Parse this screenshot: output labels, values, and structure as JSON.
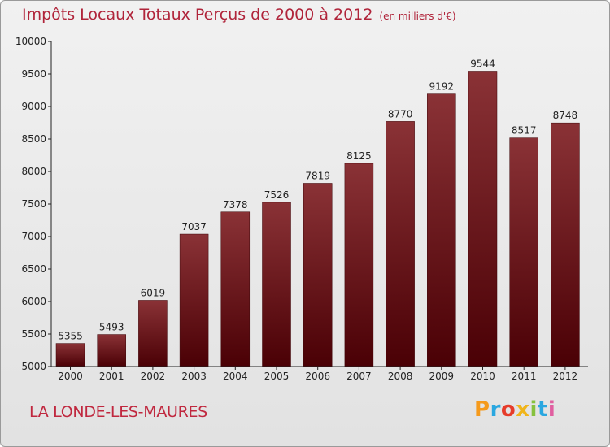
{
  "chart_data": {
    "type": "bar",
    "title": "Impôts Locaux Totaux Perçus de 2000 à 2012",
    "subtitle": "(en milliers d'€)",
    "categories": [
      "2000",
      "2001",
      "2002",
      "2003",
      "2004",
      "2005",
      "2006",
      "2007",
      "2008",
      "2009",
      "2010",
      "2011",
      "2012"
    ],
    "values": [
      5355,
      5493,
      6019,
      7037,
      7378,
      7526,
      7819,
      8125,
      8770,
      9192,
      9544,
      8517,
      8748
    ],
    "ylim": [
      5000,
      10000
    ],
    "yticks": [
      5000,
      5500,
      6000,
      6500,
      7000,
      7500,
      8000,
      8500,
      9000,
      9500,
      10000
    ],
    "xlabel": "",
    "ylabel": "",
    "grid": false
  },
  "footer": {
    "commune": "LA LONDE-LES-MAURES",
    "logo_letters": [
      "P",
      "r",
      "o",
      "x",
      "i",
      "t",
      "i"
    ],
    "logo_colors": [
      "#f59a1c",
      "#2aa7e0",
      "#e63c2a",
      "#f0b51b",
      "#86c13e",
      "#2aa7e0",
      "#e05fa0"
    ]
  },
  "colors": {
    "bar_top": "#8a3236",
    "bar_bottom": "#4a0005",
    "axis": "#222222",
    "label": "#222222"
  }
}
